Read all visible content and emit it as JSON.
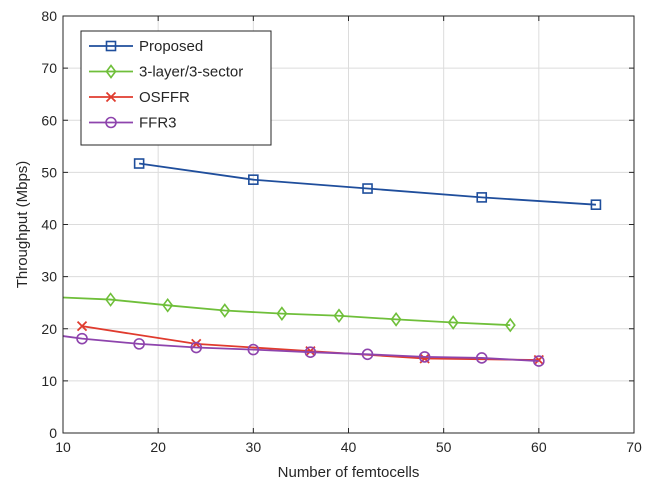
{
  "chart_data": {
    "type": "line",
    "title": "",
    "xlabel": "Number of femtocells",
    "ylabel": "Throughput (Mbps)",
    "xlim": [
      10,
      70
    ],
    "ylim": [
      0,
      80
    ],
    "xticks": [
      10,
      20,
      30,
      40,
      50,
      60,
      70
    ],
    "yticks": [
      0,
      10,
      20,
      30,
      40,
      50,
      60,
      70,
      80
    ],
    "grid": true,
    "legend_position": "top-left",
    "series": [
      {
        "name": "Proposed",
        "color": "#1f4e9c",
        "marker": "square",
        "x": [
          18,
          30,
          42,
          54,
          66
        ],
        "y": [
          51.7,
          48.6,
          46.9,
          45.2,
          43.8
        ]
      },
      {
        "name": "3-layer/3-sector",
        "color": "#6fbf3a",
        "marker": "diamond",
        "x": [
          10,
          15,
          21,
          27,
          33,
          39,
          45,
          51,
          57
        ],
        "y": [
          26.0,
          25.6,
          24.5,
          23.5,
          22.9,
          22.5,
          21.8,
          21.2,
          20.7
        ],
        "marker_x": [
          15,
          21,
          27,
          33,
          39,
          45,
          51,
          57
        ]
      },
      {
        "name": "OSFFR",
        "color": "#e03b2e",
        "marker": "x",
        "x": [
          12,
          24,
          36,
          48,
          60
        ],
        "y": [
          20.5,
          17.1,
          15.7,
          14.3,
          14.0
        ]
      },
      {
        "name": "FFR3",
        "color": "#8e44ad",
        "marker": "circle",
        "x": [
          10,
          12,
          18,
          24,
          30,
          36,
          42,
          48,
          54,
          60
        ],
        "y": [
          18.6,
          18.1,
          17.1,
          16.4,
          16.0,
          15.5,
          15.1,
          14.6,
          14.4,
          13.8
        ],
        "marker_x": [
          12,
          18,
          24,
          30,
          36,
          42,
          48,
          54,
          60
        ]
      }
    ]
  }
}
